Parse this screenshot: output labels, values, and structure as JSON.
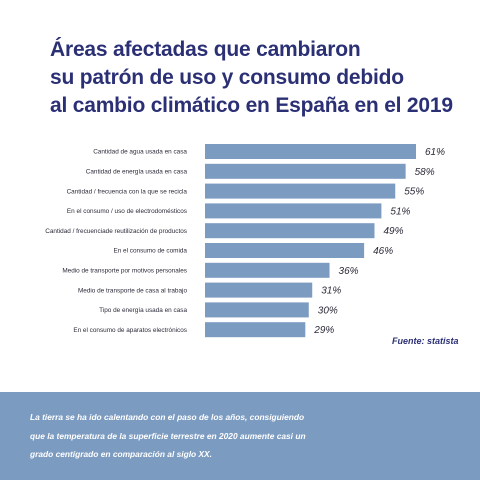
{
  "title_lines": [
    "Áreas afectadas que cambiaron",
    "su patrón de uso y consumo debido",
    "al cambio climático en España en el 2019"
  ],
  "source": "Fuente: statista",
  "footer_lines": [
    "La tierra se ha ido calentando con el paso de los años, consiguiendo",
    "que la temperatura de la superficie terrestre en 2020 aumente casi un",
    "grado centígrado en comparación al siglo XX."
  ],
  "colors": {
    "bar": "#7c9bc1",
    "title": "#2b3075",
    "footer_bg": "#7c9bc1"
  },
  "chart_data": {
    "type": "bar",
    "orientation": "horizontal",
    "categories": [
      "Cantidad de agua usada en casa",
      "Cantidad de energía usada en casa",
      "Cantidad / frecuencia con la que se recicla",
      "En el consumo / uso de electrodomésticos",
      "Cantidad  / frecuenciade reutilización de productos",
      "En el consumo de comida",
      "Medio de transporte por motivos personales",
      "Medio de transporte de casa al trabajo",
      "Tipo de energía usada en casa",
      "En el consumo de aparatos electrónicos"
    ],
    "values": [
      61,
      58,
      55,
      51,
      49,
      46,
      36,
      31,
      30,
      29
    ],
    "value_labels": [
      "61%",
      "58%",
      "55%",
      "51%",
      "49%",
      "46%",
      "36%",
      "31%",
      "30%",
      "29%"
    ],
    "unit": "%",
    "xlim": [
      0,
      61
    ],
    "grid": false,
    "legend": "none"
  }
}
